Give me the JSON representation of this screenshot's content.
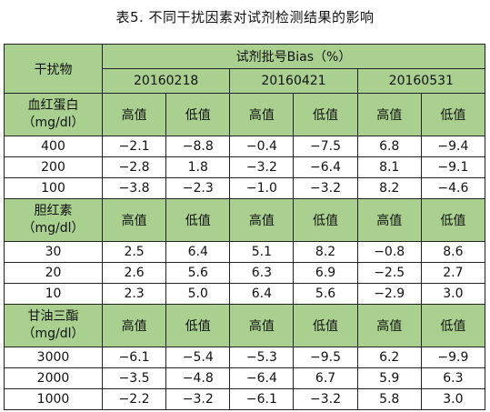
{
  "title": "表5. 不同干扰因素对试剂检测结果的影响",
  "header": {
    "factor_label": "干扰物",
    "bias_label": "试剂批号Bias（%）",
    "lots": [
      "20160218",
      "20160421",
      "20160531"
    ],
    "high_label": "高值",
    "low_label": "低值"
  },
  "groups": [
    {
      "name": "血红蛋白",
      "unit": "（mg/dl）",
      "rows": [
        {
          "conc": "400",
          "values": [
            "−2.1",
            "−8.8",
            "−0.4",
            "−7.5",
            "6.8",
            "−9.4"
          ]
        },
        {
          "conc": "200",
          "values": [
            "−2.8",
            "1.8",
            "−3.2",
            "−6.4",
            "8.1",
            "−9.1"
          ]
        },
        {
          "conc": "100",
          "values": [
            "−3.8",
            "−2.3",
            "−1.0",
            "−3.2",
            "8.2",
            "−4.6"
          ]
        }
      ]
    },
    {
      "name": "胆红素",
      "unit": "（mg/dl）",
      "rows": [
        {
          "conc": "30",
          "values": [
            "2.5",
            "6.4",
            "5.1",
            "8.2",
            "−0.8",
            "8.6"
          ]
        },
        {
          "conc": "20",
          "values": [
            "2.6",
            "5.6",
            "6.3",
            "6.9",
            "−2.5",
            "2.7"
          ]
        },
        {
          "conc": "10",
          "values": [
            "2.3",
            "5.0",
            "6.4",
            "5.6",
            "−2.9",
            "3.0"
          ]
        }
      ]
    },
    {
      "name": "甘油三酯",
      "unit": "（mg/dl）",
      "rows": [
        {
          "conc": "3000",
          "values": [
            "−6.1",
            "−5.4",
            "−5.3",
            "−9.5",
            "6.2",
            "−9.9"
          ]
        },
        {
          "conc": "2000",
          "values": [
            "−3.5",
            "−4.8",
            "−6.4",
            "6.7",
            "5.9",
            "6.3"
          ]
        },
        {
          "conc": "1000",
          "values": [
            "−2.2",
            "−3.2",
            "−6.1",
            "−3.2",
            "5.8",
            "3.0"
          ]
        }
      ]
    }
  ]
}
